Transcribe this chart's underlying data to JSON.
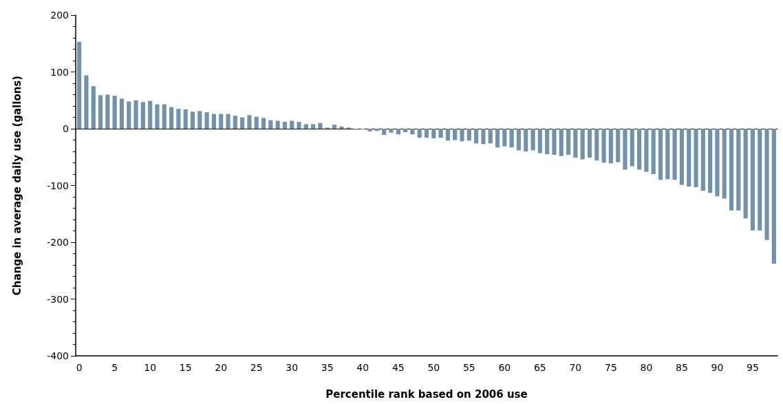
{
  "chart_data": {
    "type": "bar",
    "xlabel": "Percentile rank based on 2006 use",
    "ylabel": "Change in average daily use (gallons)",
    "categories": [
      "0",
      null,
      null,
      null,
      null,
      "5",
      null,
      null,
      null,
      null,
      "10",
      null,
      null,
      null,
      null,
      "15",
      null,
      null,
      null,
      null,
      "20",
      null,
      null,
      null,
      null,
      "25",
      null,
      null,
      null,
      null,
      "30",
      null,
      null,
      null,
      null,
      "35",
      null,
      null,
      null,
      null,
      "40",
      null,
      null,
      null,
      null,
      "45",
      null,
      null,
      null,
      null,
      "50",
      null,
      null,
      null,
      null,
      "55",
      null,
      null,
      null,
      null,
      "60",
      null,
      null,
      null,
      null,
      "65",
      null,
      null,
      null,
      null,
      "70",
      null,
      null,
      null,
      null,
      "75",
      null,
      null,
      null,
      null,
      "80",
      null,
      null,
      null,
      null,
      "85",
      null,
      null,
      null,
      null,
      "90",
      null,
      null,
      null,
      null,
      "95",
      null,
      null,
      null
    ],
    "values": [
      153,
      94,
      75,
      59,
      60,
      58,
      53,
      48,
      50,
      47,
      49,
      43,
      43,
      38,
      35,
      34,
      30,
      31,
      29,
      26,
      26,
      26,
      23,
      20,
      24,
      21,
      19,
      15,
      14,
      12,
      14,
      12,
      8,
      8,
      10,
      2,
      7,
      4,
      2,
      -2,
      -1,
      -5,
      -4,
      -11,
      -7,
      -10,
      -6,
      -10,
      -16,
      -16,
      -17,
      -16,
      -21,
      -20,
      -22,
      -21,
      -26,
      -27,
      -26,
      -33,
      -31,
      -33,
      -38,
      -40,
      -38,
      -43,
      -45,
      -46,
      -48,
      -46,
      -51,
      -54,
      -51,
      -56,
      -60,
      -61,
      -59,
      -72,
      -66,
      -72,
      -76,
      -80,
      -90,
      -89,
      -90,
      -99,
      -102,
      -103,
      -109,
      -113,
      -119,
      -123,
      -144,
      -144,
      -158,
      -179,
      -179,
      -196,
      -238
    ],
    "color": "#7291ab",
    "ylim": [
      -400,
      200
    ],
    "yticks": [
      -400,
      -300,
      -200,
      -100,
      0,
      100,
      200
    ]
  }
}
